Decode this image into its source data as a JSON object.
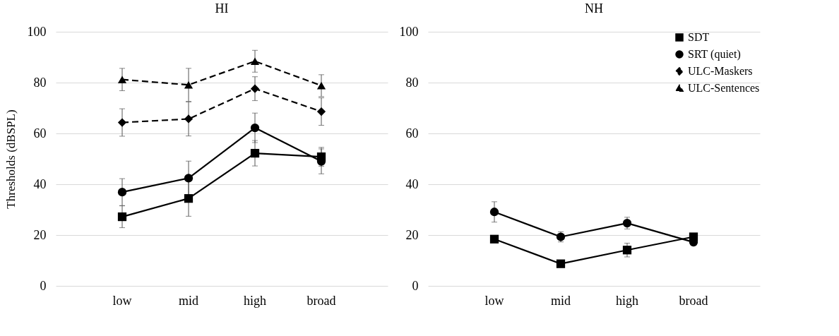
{
  "chart_data": [
    {
      "type": "line",
      "title": "HI",
      "ylabel": "Thresholds (dBSPL)",
      "categories": [
        "low",
        "mid",
        "high",
        "broad"
      ],
      "ylim": [
        0,
        100
      ],
      "yticks": [
        0,
        20,
        40,
        60,
        80,
        100
      ],
      "grid": "y",
      "series": [
        {
          "color": "#000000",
          "marker": "square",
          "line_style": "solid",
          "values": [
            27.2,
            34.4,
            52.2,
            50.8
          ],
          "errors": [
            4.3,
            7,
            5,
            3.7
          ]
        },
        {
          "color": "#000000",
          "marker": "circle",
          "line_style": "solid",
          "values": [
            36.9,
            42.4,
            62.2,
            49
          ],
          "errors": [
            5.3,
            6.7,
            5.8,
            4.9
          ]
        },
        {
          "color": "#000000",
          "marker": "diamond",
          "line_style": "dashed",
          "values": [
            64.3,
            65.7,
            77.6,
            68.6
          ],
          "errors": [
            5.4,
            6.7,
            4.7,
            5.4
          ]
        },
        {
          "color": "#000000",
          "marker": "triangle",
          "line_style": "dashed",
          "values": [
            81.2,
            79.1,
            88.4,
            78.8
          ],
          "errors": [
            4.4,
            6.5,
            4.3,
            4.3
          ]
        }
      ]
    },
    {
      "type": "line",
      "title": "NH",
      "categories": [
        "low",
        "mid",
        "high",
        "broad"
      ],
      "ylim": [
        0,
        100
      ],
      "yticks": [
        0,
        20,
        40,
        60,
        80,
        100
      ],
      "grid": "y",
      "legend": "top right",
      "series": [
        {
          "name": "SDT",
          "color": "#000000",
          "marker": "square",
          "line_style": "solid",
          "values": [
            18.4,
            8.7,
            14.1,
            19.3
          ],
          "errors": [
            1,
            1,
            2.7,
            1
          ]
        },
        {
          "name": "SRT (quiet)",
          "color": "#000000",
          "marker": "circle",
          "line_style": "solid",
          "values": [
            29.1,
            19.3,
            24.7,
            17.2
          ],
          "errors": [
            4,
            2,
            2.3,
            1
          ]
        },
        {
          "name": "ULC-Maskers",
          "color": "#000000",
          "marker": "diamond",
          "line_style": "dashed",
          "values": [
            null,
            null,
            null,
            null
          ]
        },
        {
          "name": "ULC-Sentences",
          "color": "#000000",
          "marker": "triangle",
          "line_style": "dashed",
          "values": [
            null,
            null,
            null,
            null
          ]
        }
      ]
    }
  ]
}
